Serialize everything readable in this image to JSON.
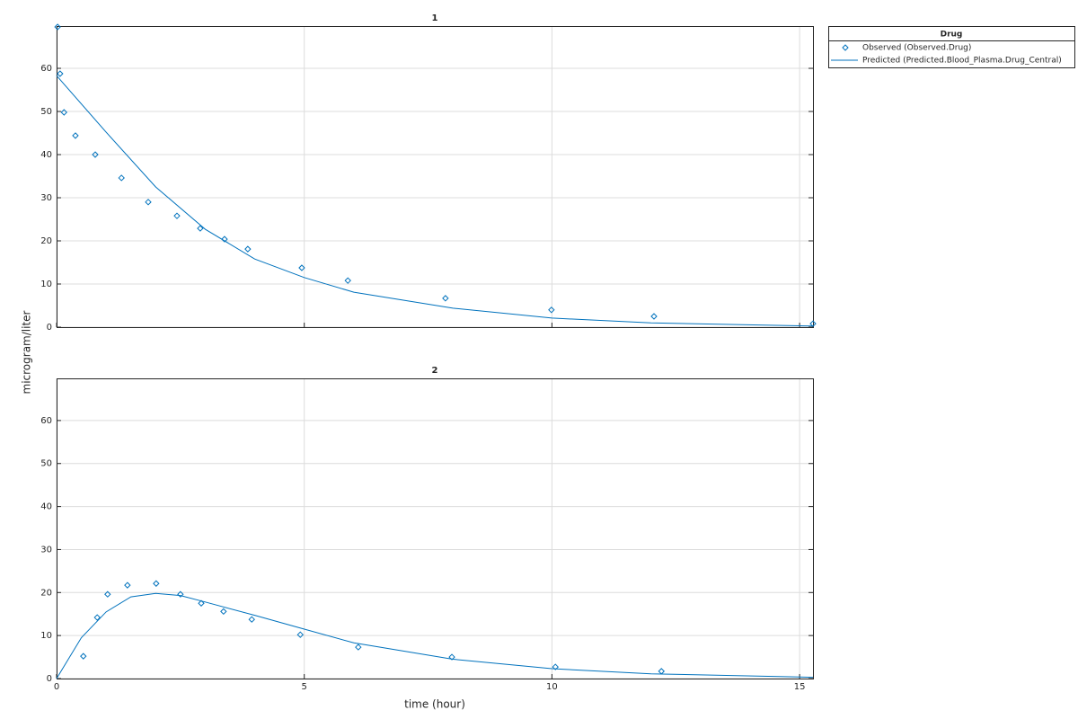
{
  "chart_data": [
    {
      "type": "line",
      "title": "1",
      "ylabel": "microgram/liter",
      "legend_title": "Drug",
      "legend": "right",
      "grid": true,
      "xlim": [
        0,
        15.27
      ],
      "ylim": [
        0,
        69.8
      ],
      "xticks": [
        0,
        5,
        10,
        15
      ],
      "yticks": [
        0,
        10,
        20,
        30,
        40,
        50,
        60
      ],
      "series": [
        {
          "name": "Observed (Observed.Drug)",
          "color": "#0072bd",
          "style": "markers",
          "x": [
            0.02,
            0.07,
            0.15,
            0.38,
            0.78,
            1.31,
            1.85,
            2.43,
            2.9,
            3.39,
            3.86,
            4.95,
            5.88,
            7.85,
            9.99,
            12.06,
            15.27
          ],
          "values": [
            69.6,
            58.75,
            49.8,
            44.4,
            40,
            34.6,
            29,
            25.8,
            22.9,
            20.4,
            18.1,
            13.75,
            10.8,
            6.7,
            4.0,
            2.5,
            0.8
          ]
        },
        {
          "name": "Predicted (Predicted.Blood_Plasma.Drug_Central)",
          "color": "#0072bd",
          "style": "line",
          "x": [
            0,
            1,
            2,
            3,
            4,
            5,
            6,
            8,
            10,
            12,
            15,
            15.27
          ],
          "values": [
            58.3,
            45.2,
            32.5,
            22.7,
            15.8,
            11.5,
            8.1,
            4.4,
            2.1,
            1.0,
            0.3,
            0.25
          ]
        }
      ]
    },
    {
      "type": "line",
      "title": "2",
      "xlabel": "time (hour)",
      "grid": true,
      "xlim": [
        0,
        15.27
      ],
      "ylim": [
        0,
        69.8
      ],
      "xticks": [
        0,
        5,
        10,
        15
      ],
      "yticks": [
        0,
        10,
        20,
        30,
        40,
        50,
        60
      ],
      "series": [
        {
          "color": "#0072bd",
          "style": "markers",
          "x": [
            0.54,
            0.82,
            1.03,
            1.43,
            2.01,
            2.5,
            2.92,
            3.37,
            3.94,
            4.92,
            6.09,
            7.98,
            10.07,
            12.21
          ],
          "values": [
            5.2,
            14.2,
            19.6,
            21.7,
            22.1,
            19.6,
            17.5,
            15.6,
            13.75,
            10.2,
            7.3,
            5.0,
            2.7,
            1.7
          ]
        },
        {
          "color": "#0072bd",
          "style": "line",
          "x": [
            0,
            0.5,
            1,
            1.5,
            2,
            2.5,
            3,
            4,
            5,
            6,
            8,
            10,
            12,
            15.27
          ],
          "values": [
            0,
            9.5,
            15.5,
            19,
            19.8,
            19.3,
            17.8,
            14.7,
            11.5,
            8.3,
            4.5,
            2.3,
            1.1,
            0.3
          ]
        }
      ]
    }
  ]
}
